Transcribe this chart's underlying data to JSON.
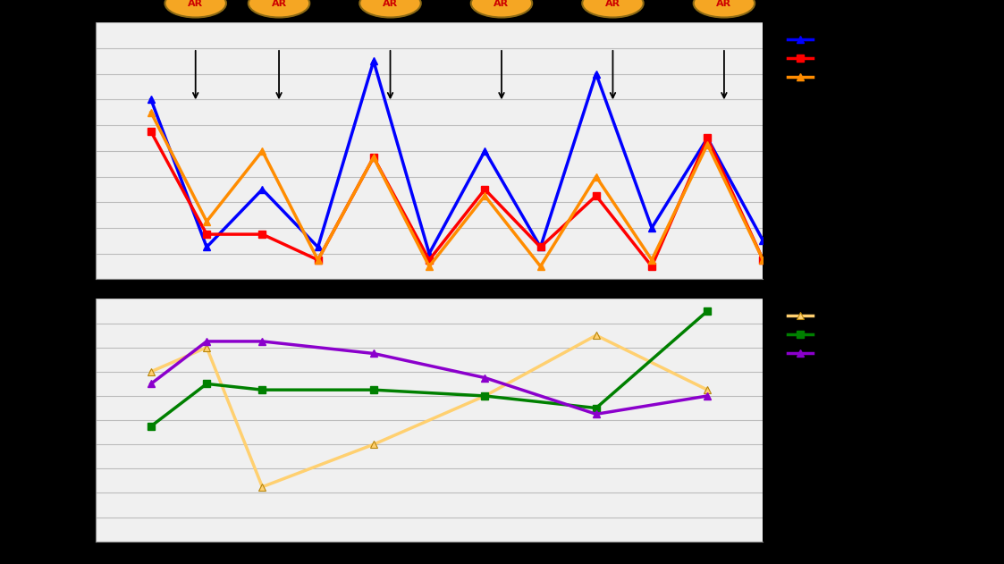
{
  "top": {
    "brissa": {
      "x": [
        1,
        2,
        3,
        4,
        5,
        6,
        7,
        8,
        9,
        10,
        11,
        12
      ],
      "y": [
        14,
        2.5,
        7,
        2.5,
        17,
        2,
        10,
        2.5,
        16,
        4,
        11,
        3
      ]
    },
    "dalafilani": {
      "x": [
        1,
        2,
        3,
        4,
        5,
        6,
        7,
        8,
        9,
        10,
        11,
        12
      ],
      "y": [
        11.5,
        3.5,
        3.5,
        1.5,
        9.5,
        1.5,
        7,
        2.5,
        6.5,
        1,
        11,
        1.5
      ]
    },
    "yarawalia": {
      "x": [
        1,
        2,
        3,
        4,
        5,
        6,
        7,
        8,
        9,
        10,
        11,
        12
      ],
      "y": [
        13,
        4.5,
        10,
        1.5,
        9.5,
        1,
        6.5,
        1,
        8,
        1.5,
        10.5,
        1.5
      ]
    },
    "ar_x": [
      1.8,
      3.3,
      5.3,
      7.3,
      9.3,
      11.3
    ],
    "ar_arrow_tip_y": [
      13.5,
      13.5,
      13.5,
      13.5,
      13.5,
      13.5
    ],
    "ylim": [
      0,
      20
    ],
    "xlim": [
      0,
      12
    ],
    "xticks": [
      0,
      2,
      4,
      6,
      8,
      10,
      12
    ],
    "yticks": [
      0,
      2,
      4,
      6,
      8,
      10,
      12,
      14,
      16,
      18,
      20
    ]
  },
  "bottom": {
    "damania": {
      "x": [
        1,
        2,
        3,
        5,
        7,
        9,
        11
      ],
      "y": [
        14,
        16,
        4.5,
        8,
        12,
        17,
        12.5
      ]
    },
    "sokourala": {
      "x": [
        1,
        2,
        3,
        5,
        7,
        9,
        11
      ],
      "y": [
        9.5,
        13,
        12.5,
        12.5,
        12,
        11,
        19
      ]
    },
    "sonkonia": {
      "x": [
        1,
        2,
        3,
        5,
        7,
        9,
        11
      ],
      "y": [
        13,
        16.5,
        16.5,
        15.5,
        13.5,
        10.5,
        12
      ]
    },
    "ylim": [
      0,
      20
    ],
    "xlim": [
      0,
      12
    ],
    "xticks": [
      0,
      2,
      4,
      6,
      8,
      10,
      12
    ],
    "yticks": [
      0,
      2,
      4,
      6,
      8,
      10,
      12,
      14,
      16,
      18,
      20
    ]
  },
  "colors": {
    "brissa": "#0000FF",
    "dalafilani": "#FF0000",
    "yarawalia": "#FF8C00",
    "damania": "#FFD070",
    "sokourala": "#008000",
    "sonkonia": "#8B00CC"
  },
  "ar_ellipse_facecolor": "#F5A623",
  "ar_ellipse_edgecolor": "#8B6914",
  "ar_text_color": "#CC0000",
  "chart_bg": "#F0F0F0",
  "figure_bg": "#000000",
  "grid_color": "#BBBBBB",
  "lw": 2.5,
  "ms": 6
}
